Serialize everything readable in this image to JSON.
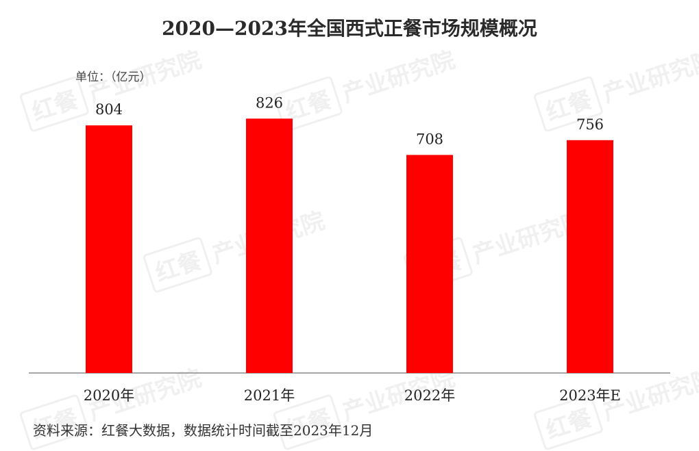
{
  "watermark": {
    "brand": "红餐",
    "text": "产业研究院"
  },
  "chart_data": {
    "type": "bar",
    "title": "2020—2023年全国西式正餐市场规模概况",
    "unit": "单位：（亿元）",
    "categories": [
      "2020年",
      "2021年",
      "2022年",
      "2023年E"
    ],
    "values": [
      804,
      826,
      708,
      756
    ],
    "bar_color": "#ff0000",
    "ylim": [
      0,
      900
    ],
    "grid": false,
    "legend": "none",
    "source": "资料来源：红餐大数据，数据统计时间截至2023年12月"
  }
}
